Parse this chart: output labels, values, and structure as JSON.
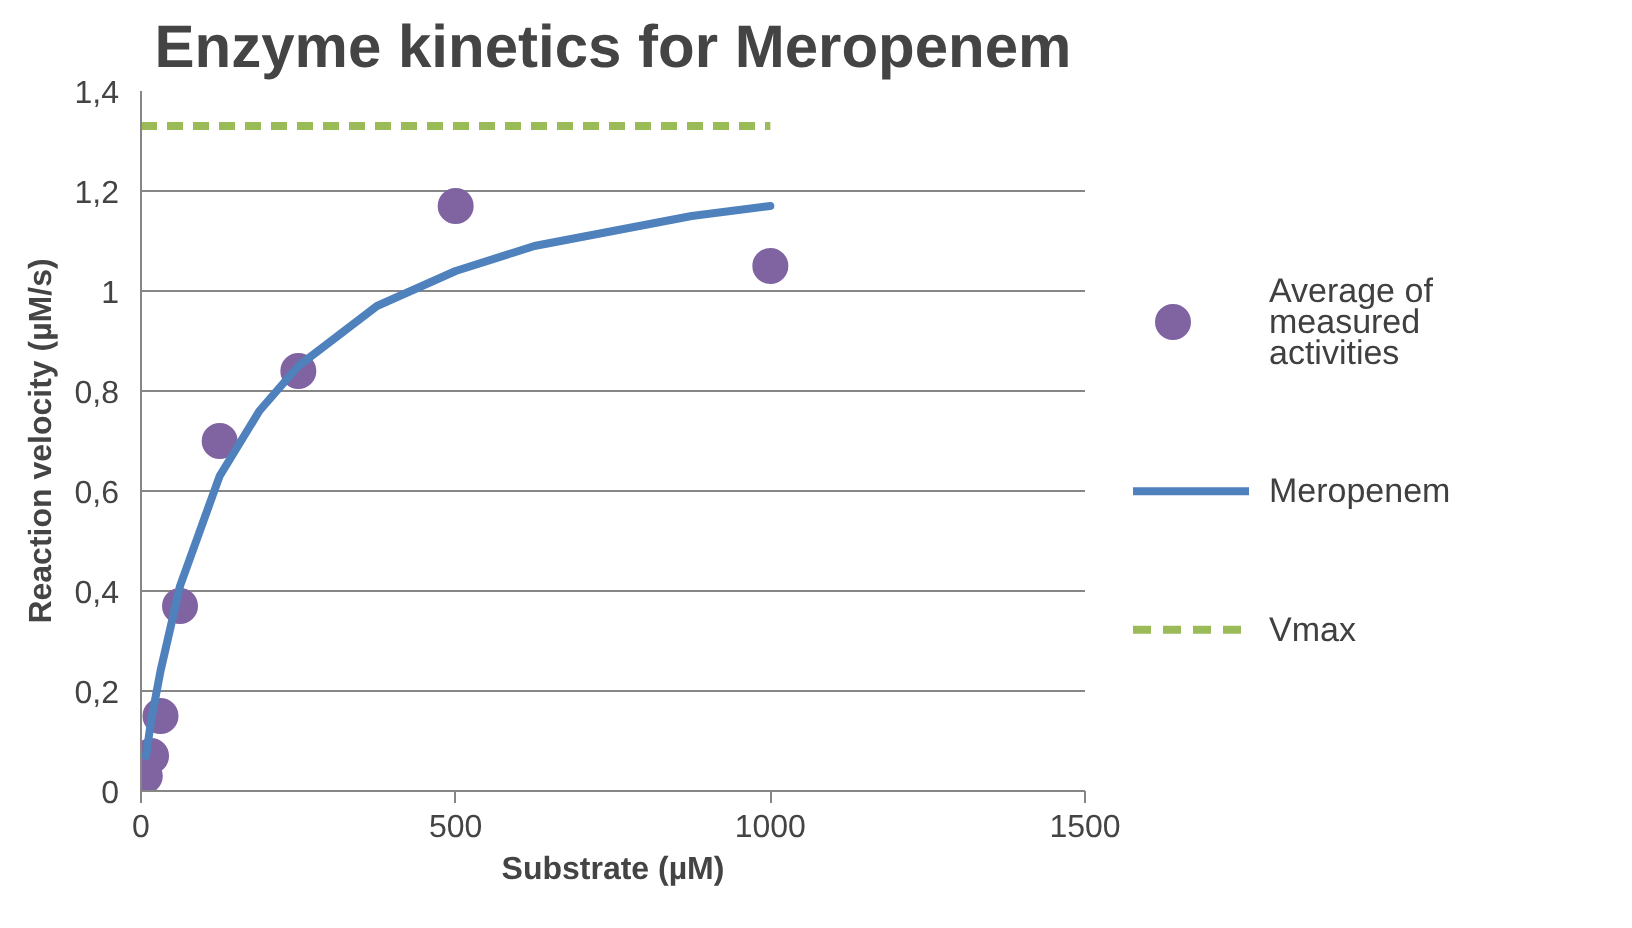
{
  "chart_data": {
    "type": "scatter",
    "title": "Enzyme kinetics for Meropenem",
    "xlabel": "Substrate (µM)",
    "ylabel": "Reaction velocity (µM/s)",
    "xlim": [
      0,
      1500
    ],
    "xticks": [
      0,
      500,
      1000,
      1500
    ],
    "ylim": [
      0,
      1.4
    ],
    "yticks": [
      {
        "value": 0,
        "label": "0"
      },
      {
        "value": 0.2,
        "label": "0,2"
      },
      {
        "value": 0.4,
        "label": "0,4"
      },
      {
        "value": 0.6,
        "label": "0,6"
      },
      {
        "value": 0.8,
        "label": "0,8"
      },
      {
        "value": 1,
        "label": "1"
      },
      {
        "value": 1.2,
        "label": "1,2"
      },
      {
        "value": 1.4,
        "label": "1,4"
      }
    ],
    "grid": "y",
    "legend": "right",
    "series": [
      {
        "name": "Average of measured activities",
        "type": "scatter",
        "marker": "circle",
        "color": "#8064a2",
        "x": [
          6,
          16,
          31,
          62,
          125,
          250,
          500,
          1000
        ],
        "values": [
          0.03,
          0.07,
          0.15,
          0.37,
          0.7,
          0.84,
          1.17,
          1.05
        ]
      },
      {
        "name": "Meropenem",
        "type": "line",
        "line_style": "solid",
        "color": "#4f81bd",
        "x": [
          8,
          16,
          31,
          62,
          125,
          188,
          250,
          375,
          500,
          625,
          750,
          875,
          1000
        ],
        "values": [
          0.07,
          0.14,
          0.24,
          0.41,
          0.63,
          0.76,
          0.85,
          0.97,
          1.04,
          1.09,
          1.12,
          1.15,
          1.17
        ]
      },
      {
        "name": "Vmax",
        "type": "line",
        "line_style": "dashed",
        "color": "#9bbb59",
        "x": [
          0,
          1000
        ],
        "values": [
          1.33,
          1.33
        ]
      }
    ]
  }
}
